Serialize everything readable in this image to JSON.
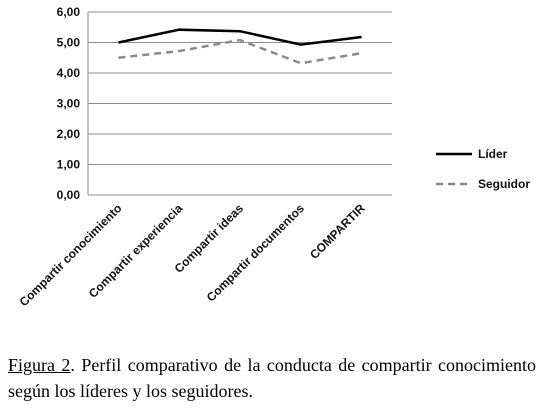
{
  "chart_data": {
    "type": "line",
    "categories": [
      "Compartir conocimiento",
      "Compartir experiencia",
      "Compartir ideas",
      "Compartir documentos",
      "COMPARTIR"
    ],
    "series": [
      {
        "name": "Líder",
        "values": [
          5.0,
          5.42,
          5.37,
          4.93,
          5.18
        ],
        "color": "#000000",
        "dash": "solid"
      },
      {
        "name": "Seguidor",
        "values": [
          4.5,
          4.72,
          5.08,
          4.32,
          4.65
        ],
        "color": "#8a8a8a",
        "dash": "dashed"
      }
    ],
    "y_ticks": [
      "0,00",
      "1,00",
      "2,00",
      "3,00",
      "4,00",
      "5,00",
      "6,00"
    ],
    "ylim": [
      0,
      6
    ],
    "grid": "horizontal",
    "legend_position": "right"
  },
  "caption": {
    "figure_label": "Figura 2",
    "text": ". Perfil comparativo de la conducta de compartir conocimiento según los líderes y los seguidores."
  }
}
